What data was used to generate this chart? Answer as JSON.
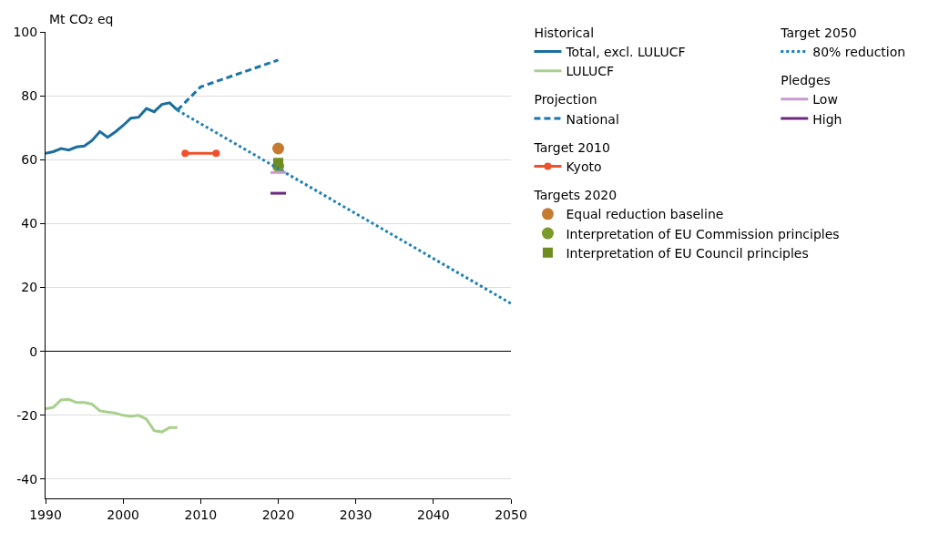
{
  "chart_data": {
    "type": "line",
    "ylabel": "Mt CO₂ eq",
    "annotations": [
      "Historical",
      "Projection",
      "Target 2010",
      "Targets 2020",
      "Target 2050",
      "Pledges"
    ],
    "xlim": [
      1990,
      2050
    ],
    "xticks": [
      1990,
      2000,
      2010,
      2020,
      2030,
      2040,
      2050
    ],
    "ylim": [
      -46,
      100
    ],
    "yticks": [
      -40,
      -20,
      0,
      20,
      40,
      60,
      80,
      100
    ],
    "grid": "y",
    "legend": "right",
    "series": [
      {
        "name": "Total, excl. LULUCF",
        "color": "#1a6e9e",
        "line_style": "solid",
        "marker": "none",
        "x": [
          1990,
          1991,
          1992,
          1993,
          1994,
          1995,
          1996,
          1997,
          1998,
          1999,
          2000,
          2001,
          2002,
          2003,
          2004,
          2005,
          2006,
          2007
        ],
        "values": [
          62,
          62.5,
          63.5,
          63,
          64,
          64.3,
          66,
          68.8,
          67,
          68.7,
          70.7,
          73,
          73.3,
          76,
          75,
          77.3,
          77.8,
          75.5
        ]
      },
      {
        "name": "LULUCF",
        "color": "#a8d08d",
        "line_style": "solid",
        "marker": "none",
        "x": [
          1990,
          1991,
          1992,
          1993,
          1994,
          1995,
          1996,
          1997,
          1998,
          1999,
          2000,
          2001,
          2002,
          2003,
          2004,
          2005,
          2006,
          2007
        ],
        "values": [
          -18,
          -17.5,
          -15.2,
          -15,
          -16,
          -16,
          -16.5,
          -18.6,
          -19,
          -19.3,
          -20,
          -20.3,
          -20,
          -21.2,
          -24.8,
          -25.2,
          -23.8,
          -23.8
        ]
      },
      {
        "name": "National",
        "color": "#1b75a8",
        "line_style": "dashed",
        "marker": "none",
        "x": [
          2007,
          2010,
          2020
        ],
        "values": [
          75.5,
          82.8,
          91.2
        ]
      },
      {
        "name": "Kyoto",
        "color": "#f0502a",
        "line_style": "solid",
        "marker": "circle",
        "x": [
          2008,
          2012
        ],
        "values": [
          62,
          62
        ]
      },
      {
        "name": "Equal reduction baseline",
        "type": "scatter",
        "color": "#c57a30",
        "marker": "circle",
        "x": [
          2020
        ],
        "values": [
          63.5
        ]
      },
      {
        "name": "Interpretation of EU Commission principles",
        "type": "scatter",
        "color": "#7a9a2a",
        "marker": "circle",
        "x": [
          2020
        ],
        "values": [
          58
        ]
      },
      {
        "name": "Interpretation of EU Council principles",
        "type": "scatter",
        "color": "#6e8c1f",
        "marker": "square",
        "x": [
          2020
        ],
        "values": [
          59
        ]
      },
      {
        "name": "80% reduction",
        "color": "#1a7fb5",
        "line_style": "dotted",
        "marker": "none",
        "x": [
          2007,
          2050
        ],
        "values": [
          75.5,
          15
        ]
      },
      {
        "name": "Low",
        "color": "#c99bd0",
        "line_style": "solid",
        "marker": "none",
        "x": [
          2019,
          2021
        ],
        "values": [
          56,
          56
        ]
      },
      {
        "name": "High",
        "color": "#6b2a80",
        "line_style": "solid",
        "marker": "none",
        "x": [
          2019,
          2021
        ],
        "values": [
          49.5,
          49.5
        ]
      }
    ]
  }
}
